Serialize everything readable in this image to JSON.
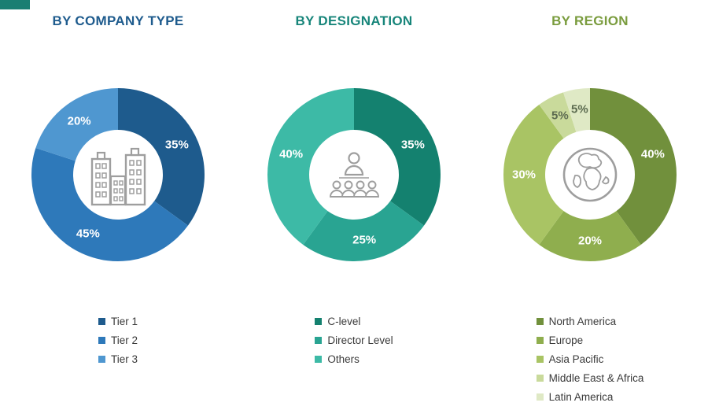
{
  "corner_accent": {
    "color": "#1a7e72"
  },
  "chart_data": [
    {
      "type": "donut",
      "title": "BY COMPANY TYPE",
      "title_color": "#1e5b8d",
      "icon": "buildings-icon",
      "legend_position": "bottom",
      "direction": "clockwise",
      "start_angle_deg": 0,
      "donut_hole_ratio": 0.52,
      "value_suffix": "%",
      "categories": [
        "Tier 1",
        "Tier 2",
        "Tier 3"
      ],
      "values": [
        35,
        45,
        20
      ],
      "colors": [
        "#1e5b8d",
        "#2e79ba",
        "#4f97d0"
      ],
      "pct_label_colors": [
        "#ffffff",
        "#ffffff",
        "#ffffff"
      ]
    },
    {
      "type": "donut",
      "title": "BY DESIGNATION",
      "title_color": "#17857a",
      "icon": "org-people-icon",
      "legend_position": "bottom",
      "direction": "clockwise",
      "start_angle_deg": 0,
      "donut_hole_ratio": 0.52,
      "value_suffix": "%",
      "categories": [
        "C-level",
        "Director Level",
        "Others"
      ],
      "values": [
        35,
        25,
        40
      ],
      "colors": [
        "#14816f",
        "#29a492",
        "#3dbaa6"
      ],
      "pct_label_colors": [
        "#ffffff",
        "#ffffff",
        "#ffffff"
      ]
    },
    {
      "type": "donut",
      "title": "BY REGION",
      "title_color": "#7a9c3e",
      "icon": "globe-icon",
      "legend_position": "bottom",
      "direction": "clockwise",
      "start_angle_deg": 0,
      "donut_hole_ratio": 0.52,
      "value_suffix": "%",
      "categories": [
        "North America",
        "Europe",
        "Asia Pacific",
        "Middle East & Africa",
        "Latin America"
      ],
      "values": [
        40,
        20,
        30,
        5,
        5
      ],
      "colors": [
        "#71903c",
        "#8fae4e",
        "#a9c464",
        "#c9da9b",
        "#dfe9c5"
      ],
      "pct_label_colors": [
        "#ffffff",
        "#ffffff",
        "#ffffff",
        "#5c6b50",
        "#5c6b50"
      ]
    }
  ]
}
